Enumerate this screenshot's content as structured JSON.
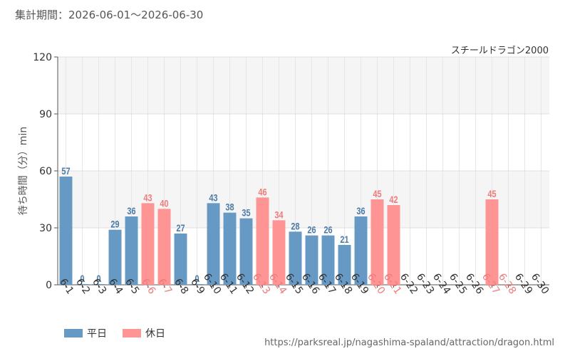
{
  "header": {
    "period_label": "集計期間：2026-06-01～2026-06-30",
    "attraction_name": "スチールドラゴン2000"
  },
  "footer": {
    "source_url": "https://parksreal.jp/nagashima-spaland/attraction/dragon.html"
  },
  "colors": {
    "weekday": "#6699c4",
    "holiday": "#ff9494",
    "weekday_text": "#4a7aa8",
    "holiday_text": "#ef7a7a"
  },
  "chart_data": {
    "type": "bar",
    "ylabel": "待ち時間（分）min",
    "ylim": [
      0,
      120
    ],
    "yticks": [
      "0",
      "30",
      "60",
      "90",
      "120"
    ],
    "categories": [
      "6-1",
      "6-2",
      "6-3",
      "6-4",
      "6-5",
      "6-6",
      "6-7",
      "6-8",
      "6-9",
      "6-10",
      "6-11",
      "6-12",
      "6-13",
      "6-14",
      "6-15",
      "6-16",
      "6-17",
      "6-18",
      "6-19",
      "6-20",
      "6-21",
      "6-22",
      "6-23",
      "6-24",
      "6-25",
      "6-26",
      "6-27",
      "6-28",
      "6-29",
      "6-30"
    ],
    "values": [
      57,
      0,
      0,
      29,
      36,
      43,
      40,
      27,
      0,
      43,
      38,
      35,
      46,
      34,
      28,
      26,
      26,
      21,
      36,
      45,
      42,
      null,
      null,
      null,
      null,
      null,
      45,
      null,
      null,
      null
    ],
    "holiday": [
      false,
      false,
      false,
      false,
      false,
      true,
      true,
      false,
      false,
      false,
      false,
      false,
      true,
      true,
      false,
      false,
      false,
      false,
      false,
      true,
      true,
      false,
      false,
      false,
      false,
      false,
      true,
      true,
      false,
      false
    ],
    "legend": [
      {
        "name": "平日",
        "kind": "weekday"
      },
      {
        "name": "休日",
        "kind": "holiday"
      }
    ],
    "grid": true,
    "legend_position": "bottom-left"
  }
}
